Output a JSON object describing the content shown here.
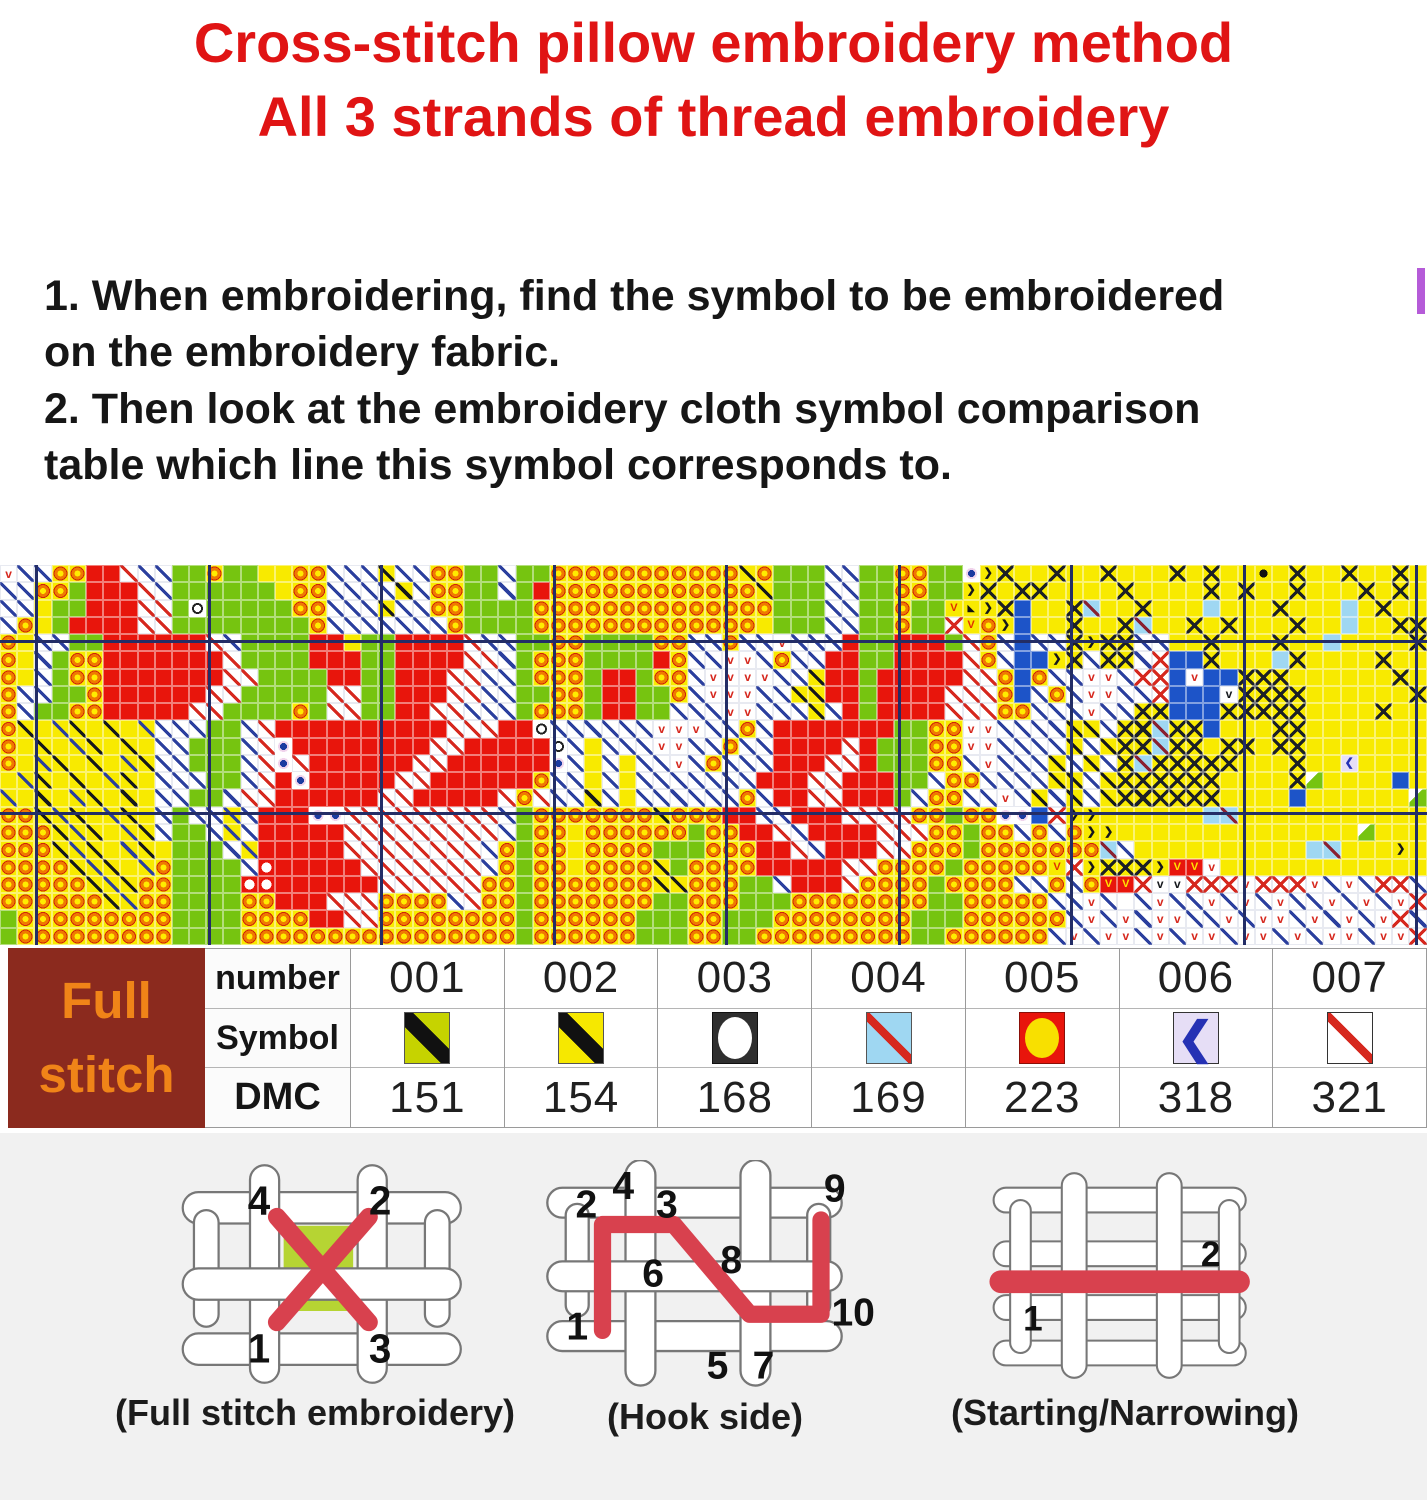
{
  "title": {
    "line1": "Cross-stitch pillow embroidery method",
    "line2": "All 3 strands of thread embroidery"
  },
  "instructions": {
    "lines": [
      "1. When embroidering, find the symbol to be embroidered",
      "on the embroidery fabric.",
      "2. Then look at the embroidery cloth symbol comparison",
      "table which line this symbol corresponds to."
    ]
  },
  "colors": {
    "title_red": "#e01414",
    "text_black": "#161616",
    "chart_red": "#e8150c",
    "chart_green": "#76c410",
    "chart_yellow": "#f8ea00",
    "chart_navy": "#2b3f9e",
    "chart_cyan": "#9fd7f2",
    "chart_blue": "#1d54c8",
    "major_gridline": "#232d66",
    "table_maroon": "#8b2a1e",
    "table_orange": "#f08418",
    "stitch_red": "#d8414e",
    "purple_artifact": "#b55bd8",
    "bottom_gray": "#f1f1f1"
  },
  "chart": {
    "rows": 22,
    "cols": 83,
    "cell_types": {
      "w": "white",
      "/": "white-blue-slash",
      "R": "white-red-slash",
      "v": "white-red-v",
      "k": "white-black-v",
      "q": "white-red-x",
      "d": "white-navy-dot",
      "W": "white-black-ring",
      "r": "red",
      "O": "red-white-circle",
      "E": "red-yellow-v",
      "g": "green",
      "G": "green-white-corner",
      "y": "yellow",
      "o": "yellow-orange-ring",
      "Y": "yellow-black-slash",
      "u": "yellow-blue-slash",
      "x": "yellow-black-x",
      "D": "yellow-black-dot",
      "V": "yellow-red-v",
      ">": "yellow-black-chevron",
      "T": "yellow-black-triangle",
      "c": "cyan",
      "C": "cyan-red-slash",
      "b": "blue",
      "B": "lavender-blue-chevron"
    },
    "grid": [
      "v//oorrR//ggoggyyoo///Y//oogg/ggoooooooooooYoggg//ggooggd>xyyxyyxyyyxyxyyDyxyyxyyxy",
      "//oogrrrR/ggggggyoo////Y/oogg/groooooooooooo Yggg//ggoogg>xyxxyyyyxyyyyxyxyyxyyyxyxy",
      "//yggrrrRRgWgggggoo///Y//ooggggooooooooooooooggg//ggoggVT>xbyyxCyyxyyycyyyxyyycyxyy",
      "/oygrrrrRRggggggggo///////oggggoooooooooooooyggg//ggoggqVo>byyxyyxCyyxyxyyyxyycyyxx",
      "oy//ggrrrrrrR/ggggrryggrrrrR//ggooggggoo//o//v///rggrrrgRo/b//x>xx//yyxyyyxyycyyyyx",
      "oy/goorrrrrrrRggggrrrggrrrrRR/goooggggro//vv/o//rrggrrrrRo/bb>x/xx/qbbxyyycxyyyyxyy",
      "oy/goorrrrrrrRRggggrrggrrrRR//gooogrrgoo/vvvv//Yrrgrrrrr RRobo//vv/qqbvbbxxxyyyyyyxy",
      "o//ggorrrrrrRRgggggRRggrrrRR//ggoogrrggo/vvv//YYrrgrrrrRRRob/o/vv//qbbbkxxxxyyyyyyx",
      "o/ggoorrrrrRRggggogRRggrrRR///gooogrrgg///vv///Y/rgrrrrRRRoo///v//xxbbbxxxxxyyyyxyy",
      "oYyuYyYyu///gg/Rrrrrrrrrrr RRRrrW//////vvv//o/rrrrrrrggoovv////YY/xxCxxbyyyxxyyyyyyy",
      "oyYyuYyYy//ggg/Rdrrrrrrrr RRrrrrrW/y///vv//o//rrrrRrgggoovv////Y/YxxCxxyxxyxxyyyyyyy",
      "oyuYyYyuY//ggg/RdRrrrrrrRRrrrrrrd/y/y//v/o///rrrRRrgggoo/v///Y/Y/xCxxxxxyyyxyyByyyy",
      "yuYyYyuYy///gg/Rrdrrrrr RRrrrrrro//y/y///////rrrRRrrrgg/oo////YY/YxxxxxxyyyyxGyyyyby",
      "uyYyuYyYy//gg/RRrrrrrrRRrrrrrRoR//Y/y//////o/rrRRrrrg/oo//v/Y/Y/YxxxxxxyyyybyyyyyyG",
      "ooYuYyuYy/g//u/rrrddRRRRRRRRR/goooooooYooorr//rrrRRRRoogooddbq>>yyyyyycCyyyyyyyyyyyy",
      "oooYuYyuY/gg/u/rrrrrRRRRRRRRR/gooyoooooogoorrR/rrrrRRRoogoo/o/o>>yyyyyyyyyyyyyyGyyyy",
      "oooYuYyuYyggg/urrrrrRRRRRRRR/ogooyoooogggooorrR/rrrRRooogoooooooC/yyyyyyyyyycCyyy>yy",
      "ooooYuYyuogggg/OrrrrrRRRRRRR/ogooyooooYgoooorrrrrRRoooogoooooVq>xxx>EEvyyyyyyyyyyyy",
      "oooooYuYooggggOOrrrrrrRRRRRRoogoooooooYYooogg/rrrRoooogoooo//o/oEEqkkqqqvqqqv/v/qq/",
      "ooooooYuooggggoorrrRRRoooo/Roogooooooogg ooogggoooooooo ggooooo//v/w/v//v/v/v//v/v/vq",
      "goooooooooggggoooorrRRoooooooogooooooggg oogggoooooooogggooo ooo/v/v/vv//v/vv/v/v/vq/",
      "goooooooooggggoooooooooooooooogooooooggg ooggoooooooooggooo ooo/v/vv/v/vv/vv/v/vv/vvq"
    ]
  },
  "table": {
    "corner_label": {
      "line1": "Full",
      "line2": "stitch"
    },
    "row_headers": [
      "number",
      "Symbol",
      "DMC"
    ],
    "numbers": [
      "001",
      "002",
      "003",
      "004",
      "005",
      "006",
      "007"
    ],
    "symbols": [
      {
        "name": "chartreuse-black-diagonal"
      },
      {
        "name": "yellow-black-diagonal"
      },
      {
        "name": "black-white-circle"
      },
      {
        "name": "skyblue-red-diagonal"
      },
      {
        "name": "red-yellow-circle"
      },
      {
        "name": "lavender-blue-chevron"
      },
      {
        "name": "white-red-diagonal"
      }
    ],
    "dmc": [
      "151",
      "154",
      "168",
      "169",
      "223",
      "318",
      "321"
    ]
  },
  "diagrams": [
    {
      "caption": "(Full stitch embroidery)",
      "labels": [
        "4",
        "2",
        "1",
        "3"
      ]
    },
    {
      "caption": "(Hook side)",
      "labels": [
        "2",
        "4",
        "3",
        "9",
        "6",
        "8",
        "1",
        "5",
        "7",
        "10"
      ]
    },
    {
      "caption": "(Starting/Narrowing)",
      "labels": [
        "2",
        "1"
      ]
    }
  ]
}
